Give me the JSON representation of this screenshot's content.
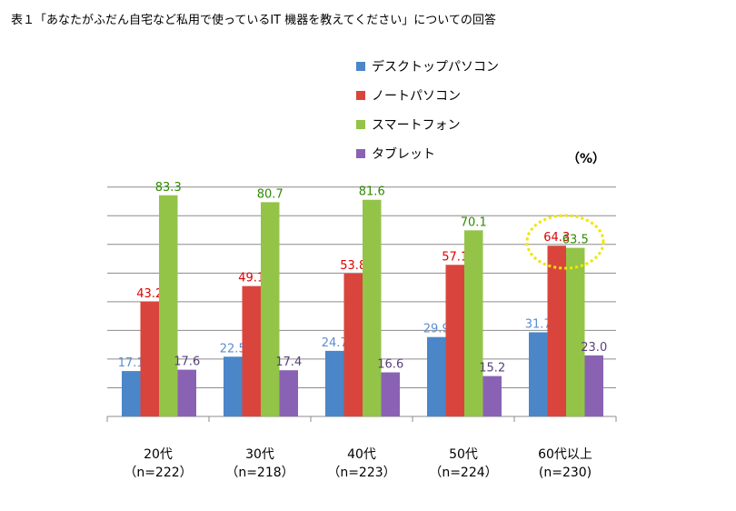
{
  "title": "表１「あなたがふだん自宅など私用で使っているIT 機器を教えてください」についての回答",
  "chart_data": {
    "type": "bar",
    "title": "表１「あなたがふだん自宅など私用で使っているIT 機器を教えてください」についての回答",
    "unit": "（%）",
    "categories": [
      "20代",
      "30代",
      "40代",
      "50代",
      "60代以上"
    ],
    "category_sublabels": [
      "（n=222）",
      "（n=218）",
      "（n=223）",
      "（n=224）",
      "(n=230)"
    ],
    "series": [
      {
        "name": "デスクトップパソコン",
        "color": "#4a86c8",
        "label_color": "#5b8fd0",
        "values": [
          17.1,
          22.5,
          24.7,
          29.9,
          31.7
        ]
      },
      {
        "name": "ノートパソコン",
        "color": "#d9453c",
        "label_color": "#e00000",
        "values": [
          43.2,
          49.1,
          53.8,
          57.1,
          64.3
        ]
      },
      {
        "name": "スマートフォン",
        "color": "#93c447",
        "label_color": "#2e8b00",
        "values": [
          83.3,
          80.7,
          81.6,
          70.1,
          63.5
        ]
      },
      {
        "name": "タブレット",
        "color": "#8a62b4",
        "label_color": "#5a3f7a",
        "values": [
          17.6,
          17.4,
          16.6,
          15.2,
          23.0
        ]
      }
    ],
    "ylim": [
      0,
      90
    ],
    "grid": true,
    "legend": "top",
    "highlight": {
      "category": "60代以上",
      "series": [
        "ノートパソコン",
        "スマートフォン"
      ],
      "color": "#f0e600"
    }
  }
}
